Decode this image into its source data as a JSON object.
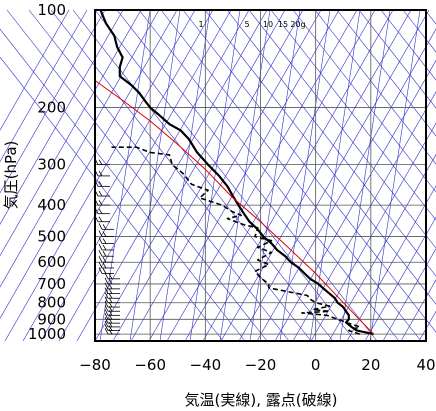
{
  "chart_data": {
    "type": "line",
    "title": "",
    "xlabel": "気温(実線), 露点(破線)",
    "ylabel": "気圧(hPa)",
    "xlim": [
      -80,
      40
    ],
    "ylim": [
      1050,
      100
    ],
    "y_scale": "log",
    "x_ticks": [
      "−80",
      "−60",
      "−40",
      "−20",
      "0",
      "20",
      "40"
    ],
    "x_tick_values": [
      -80,
      -60,
      -40,
      -20,
      0,
      20,
      40
    ],
    "y_ticks": [
      "100",
      "200",
      "300",
      "400",
      "500",
      "600",
      "700",
      "800",
      "900",
      "1000"
    ],
    "y_tick_values": [
      100,
      200,
      300,
      400,
      500,
      600,
      700,
      800,
      900,
      1000
    ],
    "mixing_ratio_labels": [
      "1",
      "5",
      "10",
      "15",
      "20g"
    ],
    "mixing_ratio_values": [
      1,
      5,
      10,
      15,
      20
    ],
    "grid": true,
    "colors": {
      "temperature": "#000000",
      "dewpoint": "#000000",
      "parcel": "#e00000",
      "background_lines": "#3030cc",
      "grid": "#555555"
    },
    "series": [
      {
        "values": [
          [
            21,
            1000
          ],
          [
            15,
            975
          ],
          [
            13,
            950
          ],
          [
            11,
            920
          ],
          [
            12,
            900
          ],
          [
            12,
            875
          ],
          [
            11,
            850
          ],
          [
            10,
            825
          ],
          [
            8,
            800
          ],
          [
            7,
            775
          ],
          [
            5,
            750
          ],
          [
            3,
            725
          ],
          [
            1,
            700
          ],
          [
            -2,
            675
          ],
          [
            -4,
            650
          ],
          [
            -6,
            625
          ],
          [
            -9,
            600
          ],
          [
            -11,
            575
          ],
          [
            -14,
            550
          ],
          [
            -16,
            525
          ],
          [
            -19,
            500
          ],
          [
            -21,
            475
          ],
          [
            -24,
            450
          ],
          [
            -26,
            425
          ],
          [
            -28,
            400
          ],
          [
            -30,
            375
          ],
          [
            -32,
            350
          ],
          [
            -35,
            325
          ],
          [
            -39,
            300
          ],
          [
            -43,
            275
          ],
          [
            -46,
            250
          ],
          [
            -49,
            235
          ],
          [
            -53,
            225
          ],
          [
            -57,
            210
          ],
          [
            -60,
            200
          ],
          [
            -62,
            190
          ],
          [
            -64,
            180
          ],
          [
            -67,
            170
          ],
          [
            -71,
            160
          ],
          [
            -71,
            150
          ],
          [
            -70,
            140
          ],
          [
            -72,
            130
          ],
          [
            -73,
            120
          ],
          [
            -76,
            110
          ],
          [
            -78,
            100
          ]
        ]
      },
      {
        "values": [
          [
            16,
            1000
          ],
          [
            12,
            975
          ],
          [
            16,
            950
          ],
          [
            12,
            925
          ],
          [
            8,
            900
          ],
          [
            4,
            875
          ],
          [
            -5,
            860
          ],
          [
            5,
            850
          ],
          [
            -1,
            840
          ],
          [
            5,
            820
          ],
          [
            0,
            800
          ],
          [
            -2,
            780
          ],
          [
            -3,
            760
          ],
          [
            -17,
            720
          ],
          [
            -17,
            700
          ],
          [
            -20,
            670
          ],
          [
            -22,
            640
          ],
          [
            -17,
            610
          ],
          [
            -21,
            590
          ],
          [
            -16,
            560
          ],
          [
            -21,
            540
          ],
          [
            -16,
            515
          ],
          [
            -22,
            500
          ],
          [
            -21,
            470
          ],
          [
            -26,
            460
          ],
          [
            -32,
            440
          ],
          [
            -27,
            430
          ],
          [
            -30,
            420
          ],
          [
            -34,
            400
          ],
          [
            -42,
            380
          ],
          [
            -39,
            360
          ],
          [
            -45,
            345
          ],
          [
            -48,
            320
          ],
          [
            -52,
            300
          ],
          [
            -53,
            280
          ],
          [
            -60,
            275
          ],
          [
            -65,
            265
          ],
          [
            -74,
            265
          ]
        ]
      },
      {
        "values": [
          [
            21,
            1000
          ],
          [
            10,
            800
          ],
          [
            0,
            650
          ],
          [
            -10,
            540
          ],
          [
            -20,
            450
          ],
          [
            -30,
            380
          ],
          [
            -40,
            310
          ],
          [
            -50,
            260
          ],
          [
            -60,
            220
          ],
          [
            -70,
            190
          ],
          [
            -80,
            165
          ]
        ]
      }
    ],
    "wind_barbs": {
      "pressures": [
        1000,
        975,
        950,
        925,
        900,
        875,
        850,
        825,
        800,
        775,
        750,
        725,
        700,
        675,
        650,
        625,
        600,
        575,
        550,
        525,
        500,
        475,
        450,
        425,
        400,
        375,
        350,
        325,
        300
      ]
    }
  }
}
